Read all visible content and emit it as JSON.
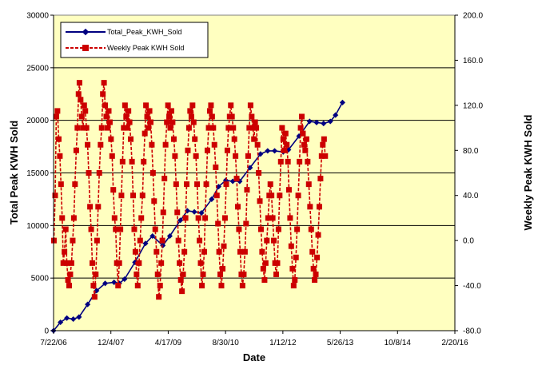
{
  "chart_data": {
    "type": "line",
    "title": "",
    "xlabel": "Date",
    "ylabel_left": "Total Peak KWH Sold",
    "ylabel_right": "Weekly Peak KWH Sold",
    "x_ticks": [
      "7/22/06",
      "12/4/07",
      "4/17/09",
      "8/30/10",
      "1/12/12",
      "5/26/13",
      "10/8/14",
      "2/20/16"
    ],
    "x_range": [
      "7/22/06",
      "2/20/16"
    ],
    "ylim_left": [
      0,
      30000
    ],
    "yticks_left": [
      "0",
      "5000",
      "10000",
      "15000",
      "20000",
      "25000",
      "30000"
    ],
    "ylim_right": [
      -80,
      200
    ],
    "yticks_right": [
      "-80.0",
      "-40.0",
      "0.0",
      "40.0",
      "80.0",
      "120.0",
      "160.0",
      "200.0"
    ],
    "grid": "horizontal",
    "legend": "top-left",
    "plot_background": "#ffffc0",
    "series": [
      {
        "name": "Total_Peak_KWH_Sold",
        "axis": "left",
        "color": "#000080",
        "marker": "diamond",
        "style": "solid",
        "points": [
          [
            "2006-07-22",
            0
          ],
          [
            "2006-09-20",
            800
          ],
          [
            "2006-11-15",
            1200
          ],
          [
            "2007-01-10",
            1100
          ],
          [
            "2007-03-01",
            1300
          ],
          [
            "2007-05-15",
            2500
          ],
          [
            "2007-08-01",
            3800
          ],
          [
            "2007-10-15",
            4500
          ],
          [
            "2008-01-01",
            4600
          ],
          [
            "2008-02-15",
            4500
          ],
          [
            "2008-04-01",
            4900
          ],
          [
            "2008-07-01",
            6500
          ],
          [
            "2008-10-01",
            8300
          ],
          [
            "2008-12-01",
            9000
          ],
          [
            "2009-03-01",
            8100
          ],
          [
            "2009-05-01",
            9000
          ],
          [
            "2009-08-01",
            10500
          ],
          [
            "2009-10-01",
            11400
          ],
          [
            "2009-12-01",
            11300
          ],
          [
            "2010-02-01",
            11200
          ],
          [
            "2010-05-01",
            12500
          ],
          [
            "2010-07-01",
            13700
          ],
          [
            "2010-09-01",
            14300
          ],
          [
            "2010-11-01",
            14200
          ],
          [
            "2011-01-01",
            14200
          ],
          [
            "2011-04-01",
            15500
          ],
          [
            "2011-07-01",
            16800
          ],
          [
            "2011-09-01",
            17100
          ],
          [
            "2011-11-01",
            17100
          ],
          [
            "2012-01-15",
            17000
          ],
          [
            "2012-03-01",
            17200
          ],
          [
            "2012-06-01",
            18500
          ],
          [
            "2012-09-01",
            19900
          ],
          [
            "2012-11-01",
            19800
          ],
          [
            "2013-01-01",
            19700
          ],
          [
            "2013-03-01",
            19900
          ],
          [
            "2013-04-15",
            20500
          ],
          [
            "2013-06-15",
            21700
          ]
        ]
      },
      {
        "name": "Weekly Peak KWH Sold",
        "axis": "right",
        "color": "#cc0000",
        "marker": "square",
        "style": "dashed",
        "points": [
          [
            "2006-07-25",
            0
          ],
          [
            "2006-08-05",
            40
          ],
          [
            "2006-08-15",
            110
          ],
          [
            "2006-08-25",
            115
          ],
          [
            "2006-09-05",
            90
          ],
          [
            "2006-09-15",
            75
          ],
          [
            "2006-09-25",
            50
          ],
          [
            "2006-10-05",
            20
          ],
          [
            "2006-10-15",
            -20
          ],
          [
            "2006-10-25",
            -10
          ],
          [
            "2006-11-05",
            10
          ],
          [
            "2006-11-15",
            -20
          ],
          [
            "2006-11-25",
            -35
          ],
          [
            "2006-12-05",
            -40
          ],
          [
            "2006-12-15",
            -30
          ],
          [
            "2006-12-25",
            -20
          ],
          [
            "2007-01-05",
            0
          ],
          [
            "2007-01-15",
            20
          ],
          [
            "2007-01-25",
            50
          ],
          [
            "2007-02-05",
            80
          ],
          [
            "2007-02-15",
            100
          ],
          [
            "2007-02-25",
            130
          ],
          [
            "2007-03-05",
            140
          ],
          [
            "2007-03-15",
            125
          ],
          [
            "2007-03-25",
            110
          ],
          [
            "2007-04-05",
            100
          ],
          [
            "2007-04-15",
            120
          ],
          [
            "2007-04-25",
            115
          ],
          [
            "2007-05-05",
            100
          ],
          [
            "2007-05-15",
            85
          ],
          [
            "2007-05-25",
            60
          ],
          [
            "2007-06-05",
            30
          ],
          [
            "2007-06-15",
            10
          ],
          [
            "2007-06-25",
            -20
          ],
          [
            "2007-07-05",
            -40
          ],
          [
            "2007-07-15",
            -50
          ],
          [
            "2007-07-25",
            -30
          ],
          [
            "2007-08-05",
            0
          ],
          [
            "2007-08-15",
            30
          ],
          [
            "2007-08-25",
            60
          ],
          [
            "2007-09-05",
            85
          ],
          [
            "2007-09-15",
            100
          ],
          [
            "2007-09-25",
            130
          ],
          [
            "2007-10-05",
            140
          ],
          [
            "2007-10-15",
            120
          ],
          [
            "2007-10-25",
            110
          ],
          [
            "2007-11-05",
            100
          ],
          [
            "2007-11-15",
            115
          ],
          [
            "2007-11-25",
            105
          ],
          [
            "2007-12-05",
            90
          ],
          [
            "2007-12-15",
            75
          ],
          [
            "2007-12-25",
            45
          ],
          [
            "2008-01-05",
            20
          ],
          [
            "2008-01-15",
            10
          ],
          [
            "2008-01-25",
            -20
          ],
          [
            "2008-02-05",
            -40
          ],
          [
            "2008-02-15",
            -20
          ],
          [
            "2008-02-25",
            10
          ],
          [
            "2008-03-05",
            40
          ],
          [
            "2008-03-15",
            70
          ],
          [
            "2008-03-25",
            100
          ],
          [
            "2008-04-05",
            120
          ],
          [
            "2008-04-15",
            110
          ],
          [
            "2008-04-25",
            100
          ],
          [
            "2008-05-05",
            115
          ],
          [
            "2008-05-15",
            105
          ],
          [
            "2008-05-25",
            90
          ],
          [
            "2008-06-05",
            70
          ],
          [
            "2008-06-15",
            40
          ],
          [
            "2008-06-25",
            10
          ],
          [
            "2008-07-05",
            -10
          ],
          [
            "2008-07-15",
            -30
          ],
          [
            "2008-07-25",
            -40
          ],
          [
            "2008-08-05",
            -20
          ],
          [
            "2008-08-15",
            0
          ],
          [
            "2008-08-25",
            20
          ],
          [
            "2008-09-05",
            40
          ],
          [
            "2008-09-15",
            70
          ],
          [
            "2008-09-25",
            95
          ],
          [
            "2008-10-05",
            120
          ],
          [
            "2008-10-15",
            110
          ],
          [
            "2008-10-25",
            100
          ],
          [
            "2008-11-05",
            115
          ],
          [
            "2008-11-15",
            105
          ],
          [
            "2008-11-25",
            85
          ],
          [
            "2008-12-05",
            60
          ],
          [
            "2008-12-15",
            35
          ],
          [
            "2008-12-25",
            10
          ],
          [
            "2009-01-05",
            -10
          ],
          [
            "2009-01-15",
            -30
          ],
          [
            "2009-01-25",
            -50
          ],
          [
            "2009-02-05",
            -40
          ],
          [
            "2009-02-15",
            -20
          ],
          [
            "2009-02-25",
            0
          ],
          [
            "2009-03-05",
            25
          ],
          [
            "2009-03-15",
            55
          ],
          [
            "2009-03-25",
            85
          ],
          [
            "2009-04-05",
            105
          ],
          [
            "2009-04-15",
            120
          ],
          [
            "2009-04-25",
            110
          ],
          [
            "2009-05-05",
            100
          ],
          [
            "2009-05-15",
            115
          ],
          [
            "2009-05-25",
            105
          ],
          [
            "2009-06-05",
            90
          ],
          [
            "2009-06-15",
            75
          ],
          [
            "2009-06-25",
            50
          ],
          [
            "2009-07-05",
            25
          ],
          [
            "2009-07-15",
            0
          ],
          [
            "2009-07-25",
            -20
          ],
          [
            "2009-08-05",
            -35
          ],
          [
            "2009-08-15",
            -45
          ],
          [
            "2009-08-25",
            -30
          ],
          [
            "2009-09-05",
            -10
          ],
          [
            "2009-09-15",
            20
          ],
          [
            "2009-09-25",
            50
          ],
          [
            "2009-10-05",
            80
          ],
          [
            "2009-10-15",
            100
          ],
          [
            "2009-10-25",
            115
          ],
          [
            "2009-11-05",
            110
          ],
          [
            "2009-11-15",
            120
          ],
          [
            "2009-11-25",
            105
          ],
          [
            "2009-12-05",
            90
          ],
          [
            "2009-12-15",
            75
          ],
          [
            "2009-12-25",
            50
          ],
          [
            "2010-01-05",
            20
          ],
          [
            "2010-01-15",
            0
          ],
          [
            "2010-01-25",
            -20
          ],
          [
            "2010-02-05",
            -40
          ],
          [
            "2010-02-15",
            -30
          ],
          [
            "2010-02-25",
            -10
          ],
          [
            "2010-03-05",
            20
          ],
          [
            "2010-03-15",
            50
          ],
          [
            "2010-03-25",
            80
          ],
          [
            "2010-04-05",
            100
          ],
          [
            "2010-04-15",
            115
          ],
          [
            "2010-04-25",
            120
          ],
          [
            "2010-05-05",
            110
          ],
          [
            "2010-05-15",
            100
          ],
          [
            "2010-05-25",
            85
          ],
          [
            "2010-06-05",
            65
          ],
          [
            "2010-06-15",
            40
          ],
          [
            "2010-06-25",
            15
          ],
          [
            "2010-07-05",
            -10
          ],
          [
            "2010-07-15",
            -30
          ],
          [
            "2010-07-25",
            -40
          ],
          [
            "2010-08-05",
            -25
          ],
          [
            "2010-08-15",
            -5
          ],
          [
            "2010-08-25",
            20
          ],
          [
            "2010-09-05",
            50
          ],
          [
            "2010-09-15",
            80
          ],
          [
            "2010-09-25",
            100
          ],
          [
            "2010-10-05",
            110
          ],
          [
            "2010-10-15",
            120
          ],
          [
            "2010-10-25",
            110
          ],
          [
            "2010-11-05",
            100
          ],
          [
            "2010-11-15",
            90
          ],
          [
            "2010-11-25",
            75
          ],
          [
            "2010-12-05",
            55
          ],
          [
            "2010-12-15",
            30
          ],
          [
            "2010-12-25",
            10
          ],
          [
            "2011-01-05",
            -10
          ],
          [
            "2011-01-15",
            -30
          ],
          [
            "2011-01-25",
            -40
          ],
          [
            "2011-02-05",
            -30
          ],
          [
            "2011-02-15",
            -10
          ],
          [
            "2011-02-25",
            15
          ],
          [
            "2011-03-05",
            45
          ],
          [
            "2011-03-15",
            75
          ],
          [
            "2011-03-25",
            100
          ],
          [
            "2011-04-05",
            120
          ],
          [
            "2011-04-15",
            110
          ],
          [
            "2011-04-25",
            100
          ],
          [
            "2011-05-05",
            90
          ],
          [
            "2011-05-15",
            105
          ],
          [
            "2011-05-25",
            100
          ],
          [
            "2011-06-05",
            85
          ],
          [
            "2011-06-15",
            60
          ],
          [
            "2011-06-25",
            35
          ],
          [
            "2011-07-05",
            10
          ],
          [
            "2011-07-15",
            -10
          ],
          [
            "2011-07-25",
            -25
          ],
          [
            "2011-08-05",
            -35
          ],
          [
            "2011-08-15",
            -20
          ],
          [
            "2011-08-25",
            0
          ],
          [
            "2011-09-05",
            20
          ],
          [
            "2011-09-15",
            40
          ],
          [
            "2011-09-25",
            50
          ],
          [
            "2011-10-05",
            40
          ],
          [
            "2011-10-15",
            20
          ],
          [
            "2011-10-25",
            0
          ],
          [
            "2011-11-05",
            -20
          ],
          [
            "2011-11-15",
            -30
          ],
          [
            "2011-11-25",
            -20
          ],
          [
            "2011-12-05",
            10
          ],
          [
            "2011-12-15",
            40
          ],
          [
            "2011-12-25",
            70
          ],
          [
            "2012-01-05",
            100
          ],
          [
            "2012-01-15",
            90
          ],
          [
            "2012-01-25",
            80
          ],
          [
            "2012-02-05",
            95
          ],
          [
            "2012-02-15",
            85
          ],
          [
            "2012-02-25",
            70
          ],
          [
            "2012-03-05",
            45
          ],
          [
            "2012-03-15",
            20
          ],
          [
            "2012-03-25",
            -5
          ],
          [
            "2012-04-05",
            -25
          ],
          [
            "2012-04-15",
            -40
          ],
          [
            "2012-04-25",
            -35
          ],
          [
            "2012-05-05",
            -15
          ],
          [
            "2012-05-15",
            10
          ],
          [
            "2012-05-25",
            40
          ],
          [
            "2012-06-05",
            70
          ],
          [
            "2012-06-15",
            100
          ],
          [
            "2012-06-25",
            110
          ],
          [
            "2012-07-05",
            95
          ],
          [
            "2012-07-15",
            85
          ],
          [
            "2012-07-25",
            80
          ],
          [
            "2012-08-05",
            90
          ],
          [
            "2012-08-15",
            70
          ],
          [
            "2012-08-25",
            50
          ],
          [
            "2012-09-05",
            30
          ],
          [
            "2012-09-15",
            10
          ],
          [
            "2012-09-25",
            -10
          ],
          [
            "2012-10-05",
            -25
          ],
          [
            "2012-10-15",
            -35
          ],
          [
            "2012-10-25",
            -30
          ],
          [
            "2012-11-05",
            -15
          ],
          [
            "2012-11-15",
            5
          ],
          [
            "2012-11-25",
            30
          ],
          [
            "2012-12-05",
            55
          ],
          [
            "2012-12-15",
            75
          ],
          [
            "2012-12-25",
            85
          ],
          [
            "2013-01-05",
            90
          ],
          [
            "2013-01-15",
            75
          ]
        ]
      }
    ]
  }
}
